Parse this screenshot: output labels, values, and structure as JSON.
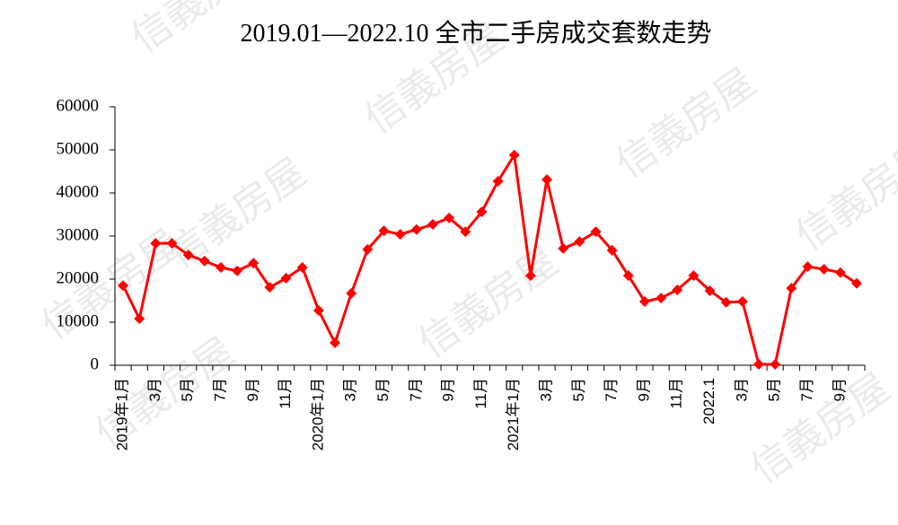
{
  "chart_data": {
    "type": "line",
    "title": "2019.01—2022.10 全市二手房成交套数走势",
    "watermark": "信義房屋",
    "categories": [
      "2019年1月",
      null,
      "3月",
      null,
      "5月",
      null,
      "7月",
      null,
      "9月",
      null,
      "11月",
      null,
      "2020年1月",
      null,
      "3月",
      null,
      "5月",
      null,
      "7月",
      null,
      "9月",
      null,
      "11月",
      null,
      "2021年1月",
      null,
      "3月",
      null,
      "5月",
      null,
      "7月",
      null,
      "9月",
      null,
      "11月",
      null,
      "2022.1",
      null,
      "3月",
      null,
      "5月",
      null,
      "7月",
      null,
      "9月",
      null
    ],
    "series": [
      {
        "color": "#ff0000",
        "values": [
          18500,
          10800,
          28300,
          28300,
          25600,
          24200,
          22700,
          21900,
          23700,
          18100,
          20200,
          22700,
          12700,
          5200,
          16700,
          26900,
          31200,
          30400,
          31500,
          32700,
          34200,
          31000,
          35600,
          42700,
          48800,
          20800,
          43100,
          27100,
          28700,
          31000,
          26700,
          20800,
          14800,
          15600,
          17500,
          20800,
          17300,
          14600,
          14800,
          200,
          200,
          17900,
          22900,
          22300,
          21500,
          19000
        ]
      }
    ],
    "ylim": [
      0,
      60000
    ],
    "yticks": [
      0,
      10000,
      20000,
      30000,
      40000,
      50000,
      60000
    ]
  }
}
